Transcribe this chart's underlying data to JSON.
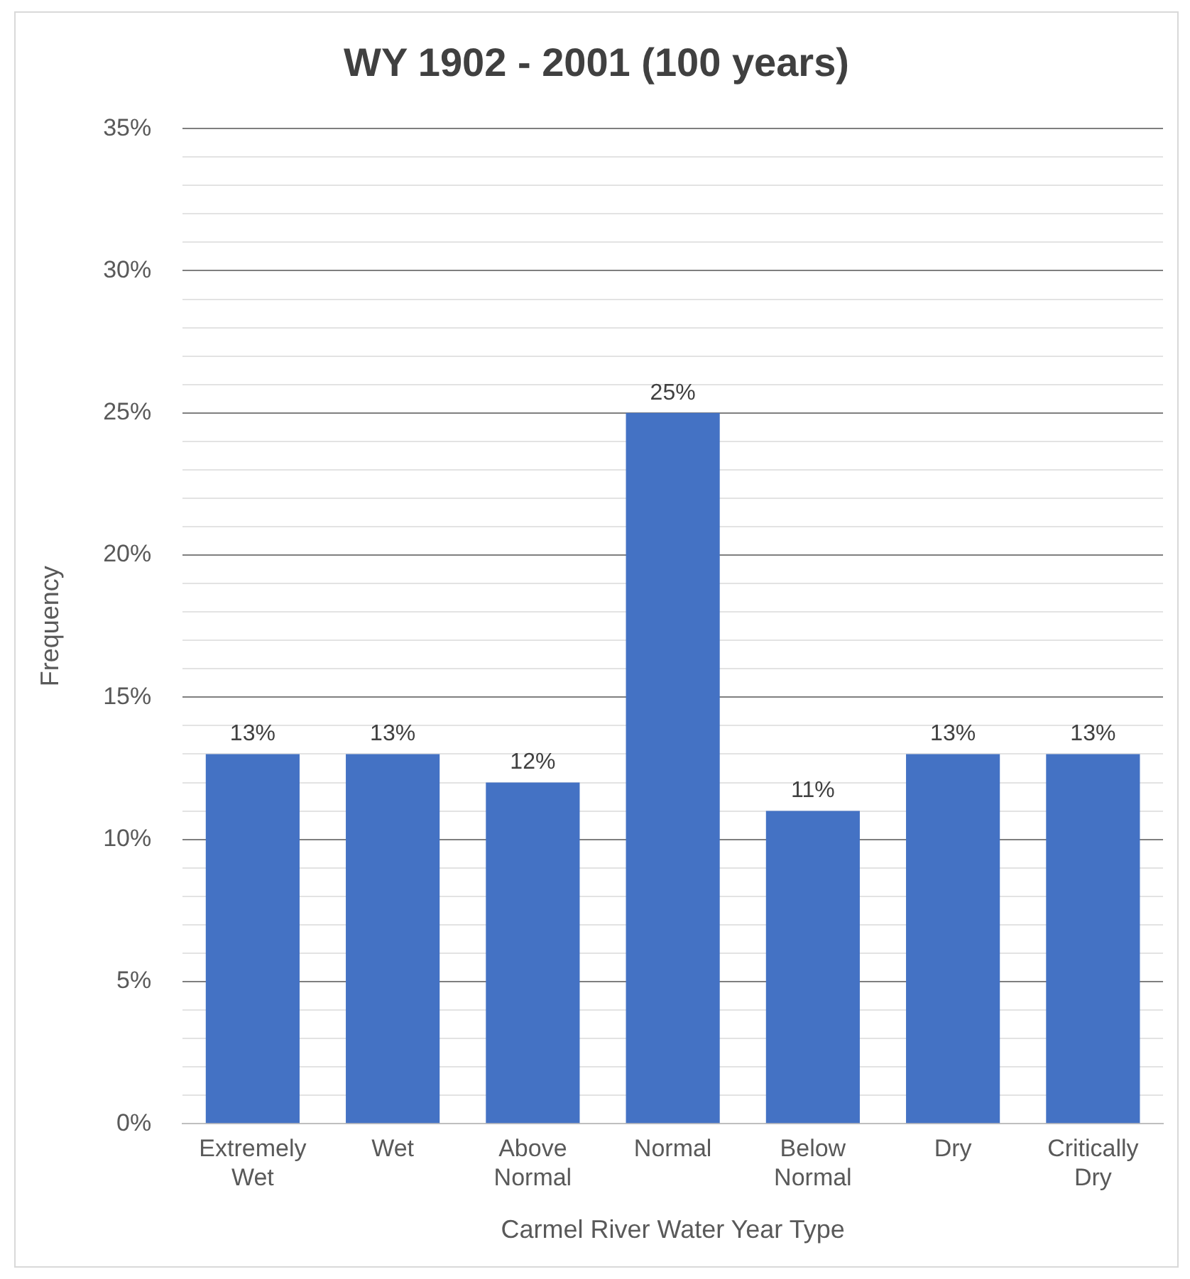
{
  "chart_data": {
    "type": "bar",
    "title": "WY 1902 - 2001 (100 years)",
    "xlabel": "Carmel River Water Year Type",
    "ylabel": "Frequency",
    "categories": [
      "Extremely Wet",
      "Wet",
      "Above Normal",
      "Normal",
      "Below Normal",
      "Dry",
      "Critically Dry"
    ],
    "values": [
      13,
      13,
      12,
      25,
      11,
      13,
      13
    ],
    "color": "#4472c4",
    "value_labels": [
      "13%",
      "13%",
      "12%",
      "25%",
      "11%",
      "13%",
      "13%"
    ],
    "ylim": [
      0,
      35
    ],
    "yticks": [
      {
        "value": 0,
        "label": "0%"
      },
      {
        "value": 1,
        "label": null
      },
      {
        "value": 2,
        "label": null
      },
      {
        "value": 3,
        "label": null
      },
      {
        "value": 4,
        "label": null
      },
      {
        "value": 5,
        "label": "5%"
      },
      {
        "value": 6,
        "label": null
      },
      {
        "value": 7,
        "label": null
      },
      {
        "value": 8,
        "label": null
      },
      {
        "value": 9,
        "label": null
      },
      {
        "value": 10,
        "label": "10%"
      },
      {
        "value": 11,
        "label": null
      },
      {
        "value": 12,
        "label": null
      },
      {
        "value": 13,
        "label": null
      },
      {
        "value": 14,
        "label": null
      },
      {
        "value": 15,
        "label": "15%"
      },
      {
        "value": 16,
        "label": null
      },
      {
        "value": 17,
        "label": null
      },
      {
        "value": 18,
        "label": null
      },
      {
        "value": 19,
        "label": null
      },
      {
        "value": 20,
        "label": "20%"
      },
      {
        "value": 21,
        "label": null
      },
      {
        "value": 22,
        "label": null
      },
      {
        "value": 23,
        "label": null
      },
      {
        "value": 24,
        "label": null
      },
      {
        "value": 25,
        "label": "25%"
      },
      {
        "value": 26,
        "label": null
      },
      {
        "value": 27,
        "label": null
      },
      {
        "value": 28,
        "label": null
      },
      {
        "value": 29,
        "label": null
      },
      {
        "value": 30,
        "label": "30%"
      },
      {
        "value": 31,
        "label": null
      },
      {
        "value": 32,
        "label": null
      },
      {
        "value": 33,
        "label": null
      },
      {
        "value": 34,
        "label": null
      },
      {
        "value": 35,
        "label": "35%"
      }
    ],
    "grid": "y"
  }
}
